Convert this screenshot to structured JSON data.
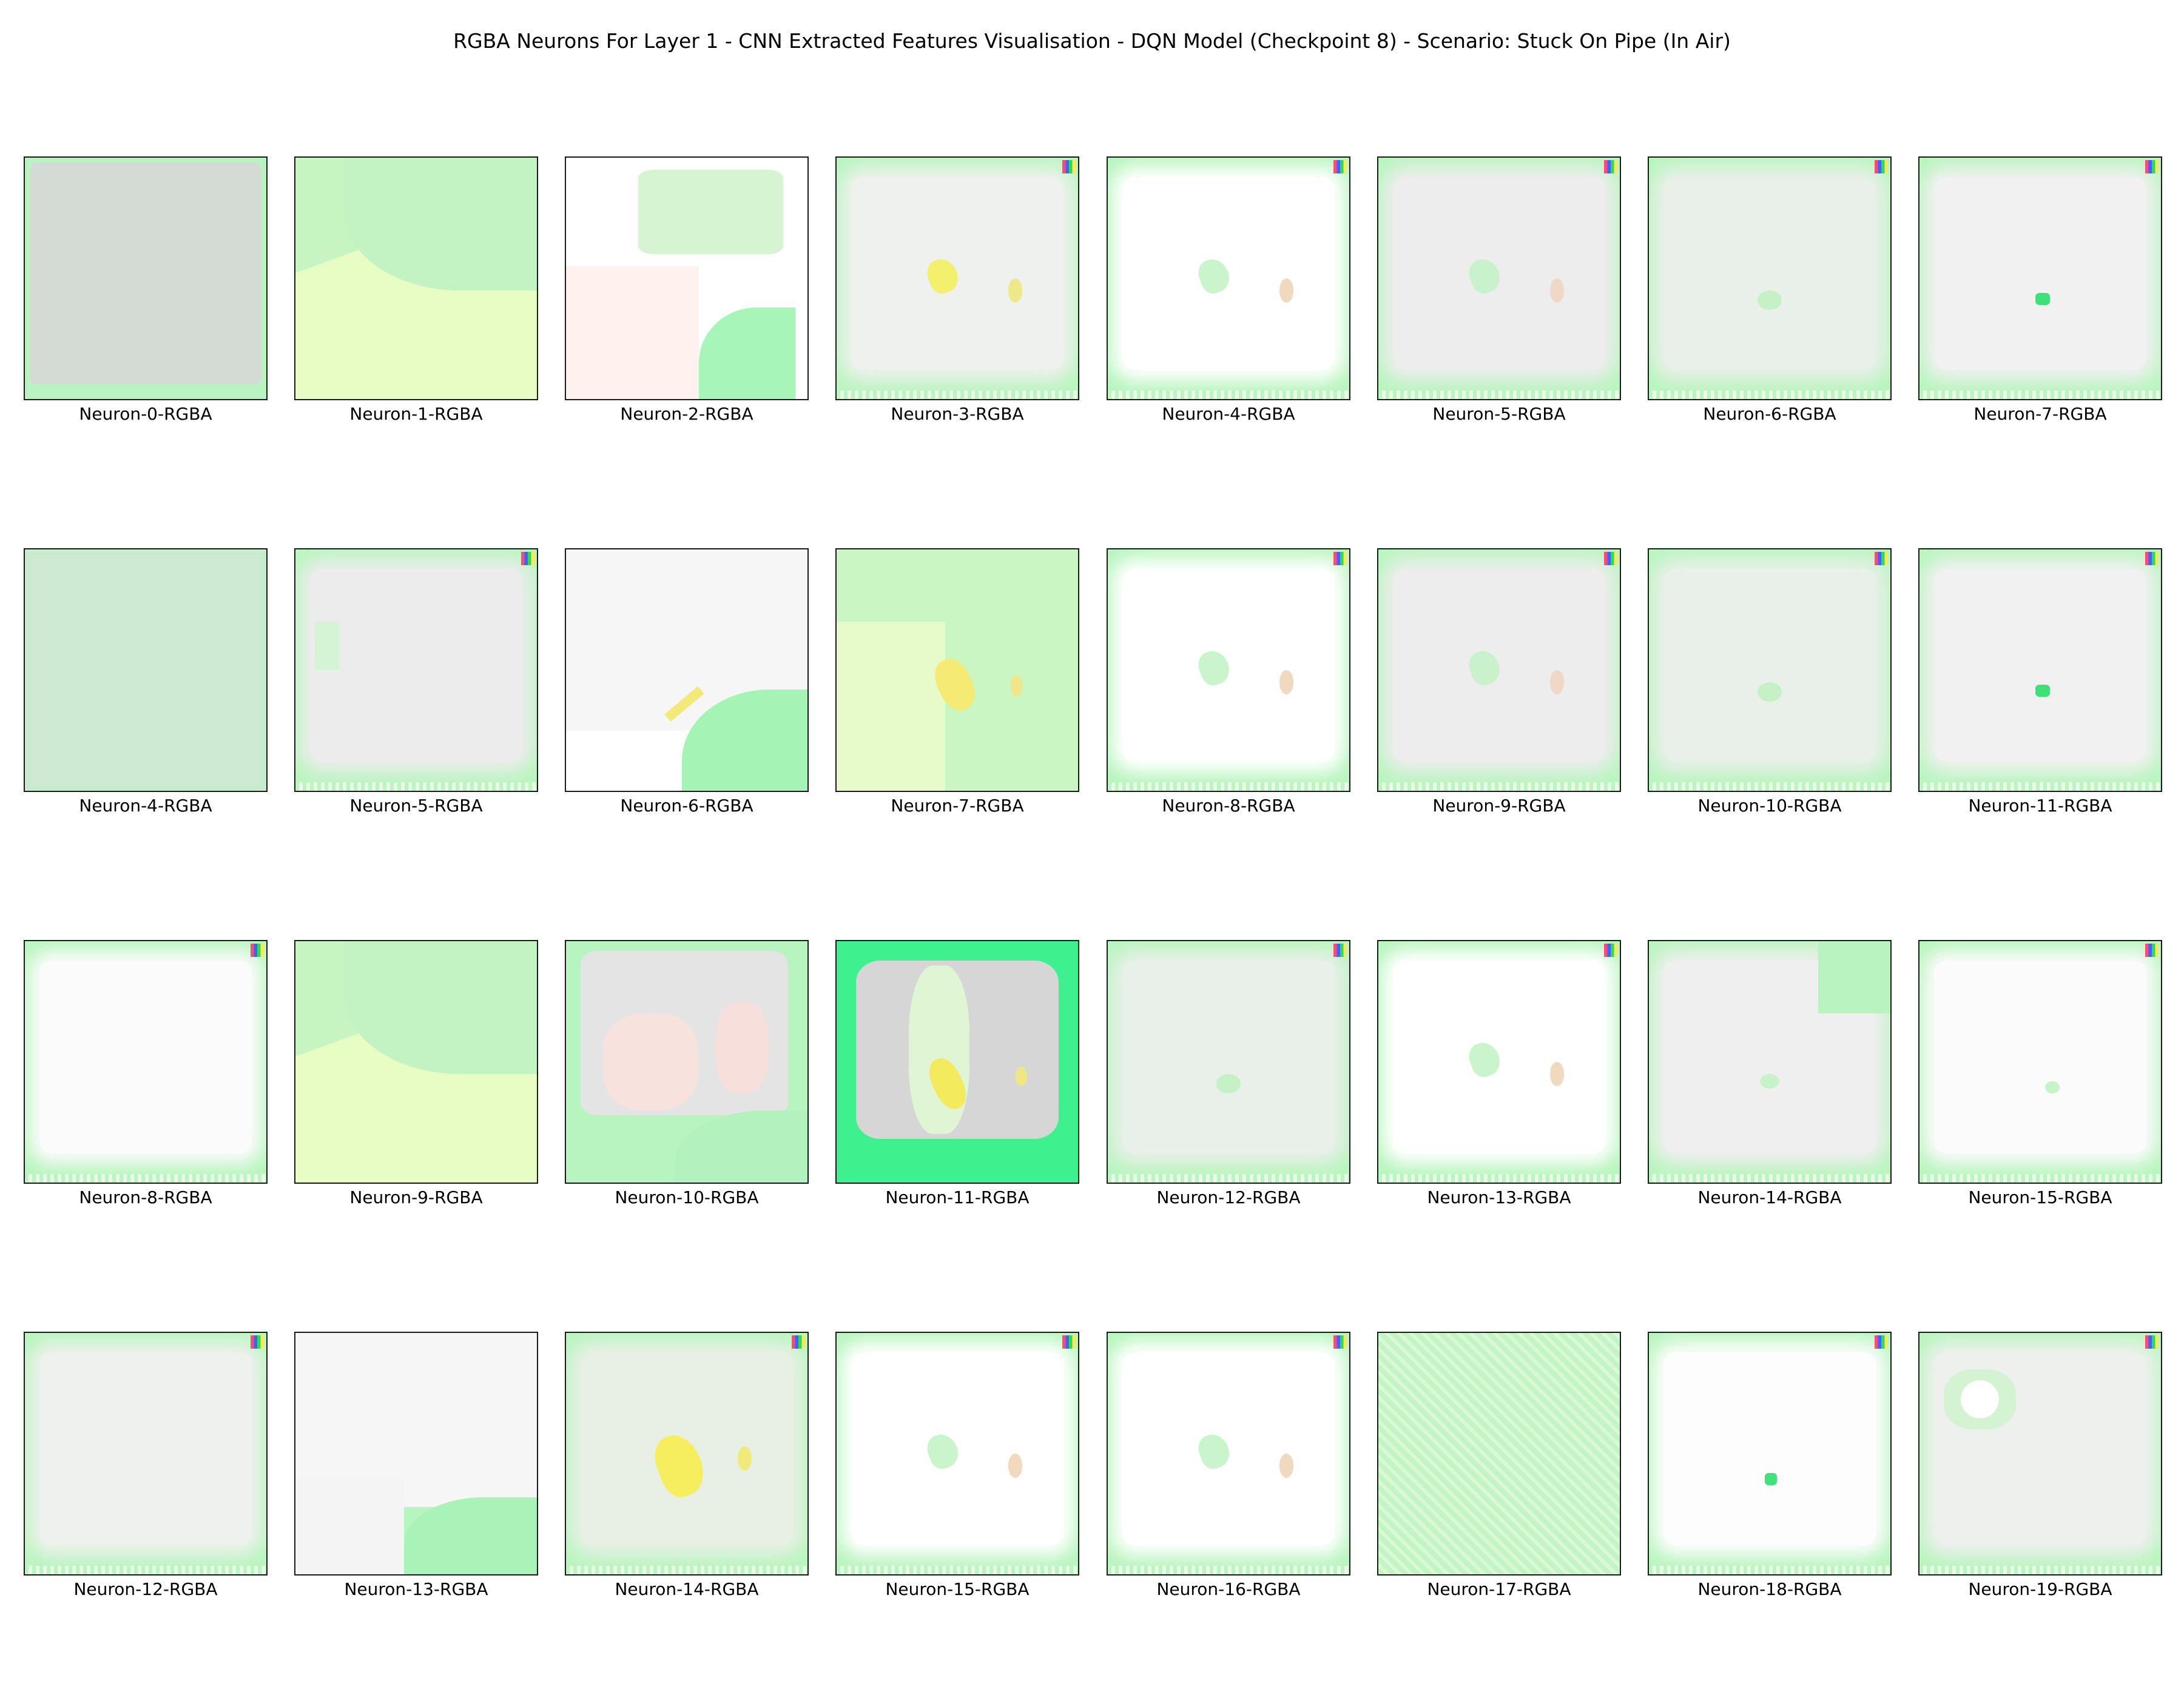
{
  "figure": {
    "title": "RGBA Neurons For Layer 1 - CNN Extracted Features Visualisation - DQN Model (Checkpoint 8) - Scenario: Stuck On Pipe (In Air)"
  },
  "panels": [
    {
      "label": "Neuron-0-RGBA"
    },
    {
      "label": "Neuron-1-RGBA"
    },
    {
      "label": "Neuron-2-RGBA"
    },
    {
      "label": "Neuron-3-RGBA"
    },
    {
      "label": "Neuron-4-RGBA"
    },
    {
      "label": "Neuron-5-RGBA"
    },
    {
      "label": "Neuron-6-RGBA"
    },
    {
      "label": "Neuron-7-RGBA"
    },
    {
      "label": "Neuron-4-RGBA"
    },
    {
      "label": "Neuron-5-RGBA"
    },
    {
      "label": "Neuron-6-RGBA"
    },
    {
      "label": "Neuron-7-RGBA"
    },
    {
      "label": "Neuron-8-RGBA"
    },
    {
      "label": "Neuron-9-RGBA"
    },
    {
      "label": "Neuron-10-RGBA"
    },
    {
      "label": "Neuron-11-RGBA"
    },
    {
      "label": "Neuron-8-RGBA"
    },
    {
      "label": "Neuron-9-RGBA"
    },
    {
      "label": "Neuron-10-RGBA"
    },
    {
      "label": "Neuron-11-RGBA"
    },
    {
      "label": "Neuron-12-RGBA"
    },
    {
      "label": "Neuron-13-RGBA"
    },
    {
      "label": "Neuron-14-RGBA"
    },
    {
      "label": "Neuron-15-RGBA"
    },
    {
      "label": "Neuron-12-RGBA"
    },
    {
      "label": "Neuron-13-RGBA"
    },
    {
      "label": "Neuron-14-RGBA"
    },
    {
      "label": "Neuron-15-RGBA"
    },
    {
      "label": "Neuron-16-RGBA"
    },
    {
      "label": "Neuron-17-RGBA"
    },
    {
      "label": "Neuron-18-RGBA"
    },
    {
      "label": "Neuron-19-RGBA"
    }
  ],
  "colors": {
    "frame_green": "#b6f7bf",
    "pale_grey": "#ececec",
    "white": "#ffffff",
    "pale_yellow": "#effcc4",
    "blob_yellow": "#f6ef6a",
    "grey_fill": "#d6dad6",
    "bright_green": "#3cf08a"
  }
}
